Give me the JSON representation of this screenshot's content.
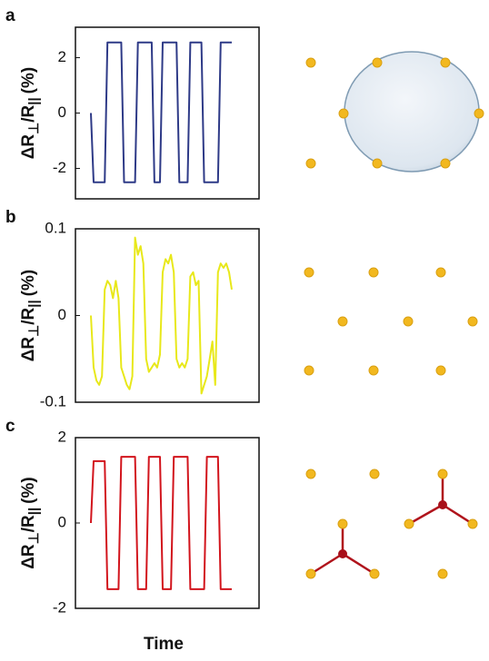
{
  "chart_data": [
    {
      "type": "line",
      "panel_label": "a",
      "ylabel_parts": [
        "ΔR",
        "⊥",
        "/R",
        "||",
        "(%)"
      ],
      "ylim": [
        -3.1,
        3.1
      ],
      "yticks": [
        2,
        0,
        -2
      ],
      "color": "#2e3a87",
      "values": [
        0,
        -2.5,
        -2.5,
        -2.5,
        -2.5,
        -2.5,
        2.55,
        2.55,
        2.55,
        2.55,
        2.55,
        2.55,
        -2.5,
        -2.5,
        -2.5,
        -2.5,
        -2.5,
        2.55,
        2.55,
        2.55,
        2.55,
        2.55,
        2.55,
        -2.5,
        -2.5,
        -2.5,
        2.55,
        2.55,
        2.55,
        2.55,
        2.55,
        2.55,
        -2.5,
        -2.5,
        -2.5,
        -2.5,
        2.55,
        2.55,
        2.55,
        2.55,
        2.55,
        -2.5,
        -2.5,
        -2.5,
        -2.5,
        -2.5,
        -2.5,
        2.55,
        2.55,
        2.55,
        2.55,
        2.55
      ]
    },
    {
      "type": "line",
      "panel_label": "b",
      "ylabel_parts": [
        "ΔR",
        "⊥",
        "/R",
        "||",
        "(%)"
      ],
      "ylim": [
        -0.1,
        0.1
      ],
      "yticks": [
        0.1,
        0,
        -0.1
      ],
      "color": "#e8e81a",
      "values": [
        0,
        -0.06,
        -0.075,
        -0.08,
        -0.07,
        0.03,
        0.04,
        0.035,
        0.02,
        0.04,
        0.02,
        -0.06,
        -0.07,
        -0.08,
        -0.085,
        -0.07,
        0.09,
        0.07,
        0.08,
        0.06,
        -0.05,
        -0.065,
        -0.06,
        -0.055,
        -0.06,
        -0.045,
        0.05,
        0.065,
        0.06,
        0.07,
        0.05,
        -0.05,
        -0.06,
        -0.055,
        -0.06,
        -0.05,
        0.045,
        0.05,
        0.035,
        0.04,
        -0.09,
        -0.08,
        -0.07,
        -0.05,
        -0.03,
        -0.08,
        0.05,
        0.06,
        0.055,
        0.06,
        0.05,
        0.03
      ]
    },
    {
      "type": "line",
      "panel_label": "c",
      "ylabel_parts": [
        "ΔR",
        "⊥",
        "/R",
        "||",
        "(%)"
      ],
      "xlabel": "Time",
      "ylim": [
        -2,
        2
      ],
      "yticks": [
        2,
        0,
        -2
      ],
      "color": "#d2141c",
      "values": [
        0,
        1.45,
        1.45,
        1.45,
        1.45,
        1.45,
        -1.55,
        -1.55,
        -1.55,
        -1.55,
        -1.55,
        1.55,
        1.55,
        1.55,
        1.55,
        1.55,
        1.55,
        -1.55,
        -1.55,
        -1.55,
        -1.55,
        1.55,
        1.55,
        1.55,
        1.55,
        1.55,
        -1.55,
        -1.55,
        -1.55,
        -1.55,
        1.55,
        1.55,
        1.55,
        1.55,
        1.55,
        1.55,
        -1.55,
        -1.55,
        -1.55,
        -1.55,
        -1.55,
        -1.55,
        1.55,
        1.55,
        1.55,
        1.55,
        1.55,
        -1.55,
        -1.55,
        -1.55,
        -1.55,
        -1.55
      ]
    }
  ]
}
